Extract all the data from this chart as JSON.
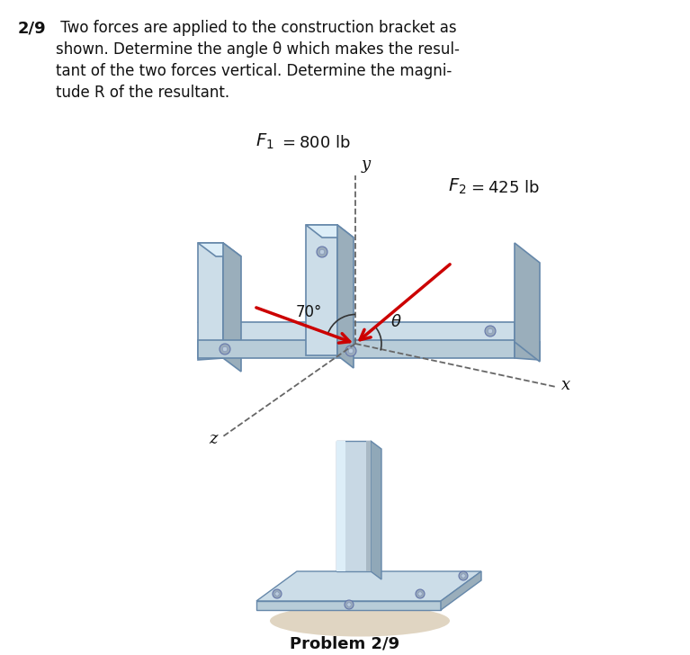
{
  "bg_color": "#ffffff",
  "problem_number": "2/9",
  "problem_text_line1": " Two forces are applied to the construction bracket as",
  "problem_text_line2": "shown. Determine the angle θ which makes the resul-",
  "problem_text_line3": "tant of the two forces vertical. Determine the magni-",
  "problem_text_line4": "tude R of the resultant.",
  "angle_label": "70°",
  "theta_label": "θ",
  "y_label": "y",
  "x_label": "x",
  "z_label": "z",
  "bc_top": "#ccdde8",
  "bc_front": "#b8ccd8",
  "bc_side": "#9aaebb",
  "bc_dark": "#8899aa",
  "col_main": "#c0d4e0",
  "col_side": "#a0b8c8",
  "shadow_color": "#d4c0a0",
  "bolt_outer": "#8899aa",
  "bolt_inner": "#aabbcc",
  "edge_color": "#6688aa",
  "arrow_color": "#cc0000",
  "dashed_color": "#666666",
  "text_color": "#111111"
}
